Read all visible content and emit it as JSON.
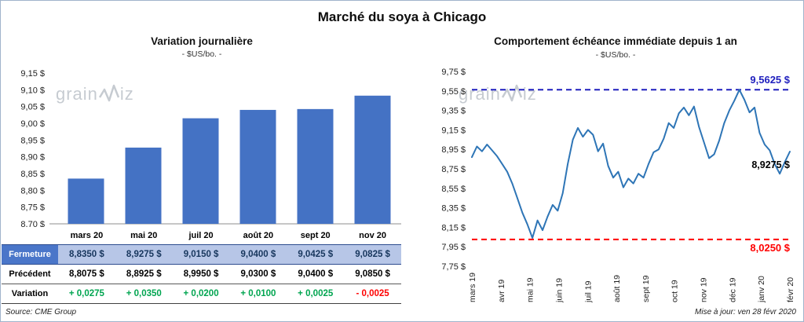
{
  "header": {
    "title": "Marché du soya à Chicago"
  },
  "footer": {
    "source": "Source: CME Group",
    "updated": "Mise à jour: ven 28 févr 2020"
  },
  "watermark": {
    "pre": "grain",
    "post": "iz"
  },
  "colors": {
    "bar": "#4472C4",
    "line": "#2E75B6",
    "reference_high": "#1F1FBE",
    "reference_low": "#FF0000",
    "positive": "#00A550",
    "negative": "#FF0000",
    "fermeture_row_bg": "#B7C6E7"
  },
  "left_panel": {
    "title": "Variation journalière",
    "subtitle": "- $US/bo. -",
    "table": {
      "columns": [
        "mars 20",
        "mai 20",
        "juil 20",
        "août 20",
        "sept 20",
        "nov 20"
      ],
      "rows": [
        {
          "label": "Fermeture",
          "values": [
            "8,8350 $",
            "8,9275 $",
            "9,0150 $",
            "9,0400 $",
            "9,0425 $",
            "9,0825 $"
          ]
        },
        {
          "label": "Précédent",
          "values": [
            "8,8075 $",
            "8,8925 $",
            "8,9950 $",
            "9,0300 $",
            "9,0400 $",
            "9,0850 $"
          ]
        },
        {
          "label": "Variation",
          "values": [
            "+ 0,0275",
            "+ 0,0350",
            "+ 0,0200",
            "+ 0,0100",
            "+ 0,0025",
            "- 0,0025"
          ]
        }
      ]
    }
  },
  "right_panel": {
    "title": "Comportement échéance immédiate depuis 1 an",
    "subtitle": "- $US/bo. -"
  },
  "chart_data": [
    {
      "type": "bar",
      "title": "Variation journalière",
      "subtitle": "- $US/bo. -",
      "categories": [
        "mars 20",
        "mai 20",
        "juil 20",
        "août 20",
        "sept 20",
        "nov 20"
      ],
      "values": [
        8.835,
        8.9275,
        9.015,
        9.04,
        9.0425,
        9.0825
      ],
      "previous": [
        8.8075,
        8.8925,
        8.995,
        9.03,
        9.04,
        9.085
      ],
      "variation": [
        0.0275,
        0.035,
        0.02,
        0.01,
        0.0025,
        -0.0025
      ],
      "ylim": [
        8.7,
        9.15
      ],
      "ytick_labels": [
        "9,15 $",
        "9,10 $",
        "9,05 $",
        "9,00 $",
        "8,95 $",
        "8,90 $",
        "8,85 $",
        "8,80 $",
        "8,75 $",
        "8,70 $"
      ],
      "bar_color": "#4472C4",
      "grid": false
    },
    {
      "type": "line",
      "title": "Comportement échéance immédiate depuis 1 an",
      "subtitle": "- $US/bo. -",
      "x_labels": [
        "mars 19",
        "avr 19",
        "mai 19",
        "juin 19",
        "juil 19",
        "août 19",
        "sept 19",
        "oct 19",
        "nov 19",
        "déc 19",
        "janv 20",
        "févr 20"
      ],
      "ylim": [
        7.75,
        9.75
      ],
      "ytick_labels": [
        "9,75 $",
        "9,55 $",
        "9,35 $",
        "9,15 $",
        "8,95 $",
        "8,75 $",
        "8,55 $",
        "8,35 $",
        "8,15 $",
        "7,95 $",
        "7,75 $"
      ],
      "series": [
        {
          "name": "échéance immédiate",
          "color": "#2E75B6",
          "values": [
            8.87,
            8.98,
            8.93,
            9.0,
            8.94,
            8.88,
            8.8,
            8.72,
            8.6,
            8.45,
            8.3,
            8.18,
            8.04,
            8.22,
            8.12,
            8.26,
            8.38,
            8.32,
            8.5,
            8.8,
            9.05,
            9.17,
            9.08,
            9.15,
            9.1,
            8.93,
            9.01,
            8.78,
            8.66,
            8.72,
            8.56,
            8.65,
            8.6,
            8.7,
            8.66,
            8.8,
            8.92,
            8.95,
            9.06,
            9.22,
            9.17,
            9.32,
            9.38,
            9.3,
            9.39,
            9.18,
            9.02,
            8.86,
            8.9,
            9.04,
            9.22,
            9.35,
            9.45,
            9.5625,
            9.46,
            9.33,
            9.38,
            9.12,
            9.0,
            8.94,
            8.8,
            8.7,
            8.82,
            8.9275
          ]
        }
      ],
      "reference_lines": [
        {
          "value": 9.5625,
          "label": "9,5625 $",
          "color": "#1F1FBE",
          "style": "dashed"
        },
        {
          "value": 8.025,
          "label": "8,0250 $",
          "color": "#FF0000",
          "style": "dashed"
        }
      ],
      "last_value": 8.9275,
      "last_value_label": "8,9275 $",
      "grid": false,
      "legend": false
    }
  ]
}
